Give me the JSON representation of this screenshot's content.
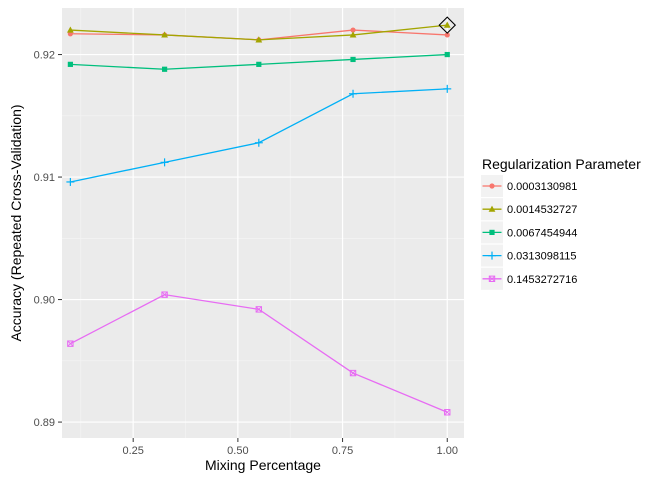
{
  "chart_data": {
    "type": "line",
    "xlabel": "Mixing Percentage",
    "ylabel": "Accuracy (Repeated Cross-Validation)",
    "xlim": [
      0.08,
      1.04
    ],
    "ylim": [
      0.8887,
      0.9238
    ],
    "x_ticks": [
      0.25,
      0.5,
      0.75,
      1.0
    ],
    "x_tick_labels": [
      "0.25",
      "0.50",
      "0.75",
      "1.00"
    ],
    "y_ticks": [
      0.89,
      0.9,
      0.91,
      0.92
    ],
    "y_tick_labels": [
      "0.89",
      "0.90",
      "0.91",
      "0.92"
    ],
    "grid": true,
    "legend": {
      "title": "Regularization Parameter",
      "position": "right"
    },
    "x": [
      0.1,
      0.325,
      0.55,
      0.775,
      1.0
    ],
    "series": [
      {
        "name": "0.0003130981",
        "color": "#F8766D",
        "shape": "circle",
        "values": [
          0.9217,
          0.9216,
          0.9212,
          0.922,
          0.9216
        ]
      },
      {
        "name": "0.0014532727",
        "color": "#A3A500",
        "shape": "triangle",
        "values": [
          0.922,
          0.9216,
          0.9212,
          0.9216,
          0.9224
        ]
      },
      {
        "name": "0.0067454944",
        "color": "#00BF7D",
        "shape": "square",
        "values": [
          0.9192,
          0.9188,
          0.9192,
          0.9196,
          0.92
        ]
      },
      {
        "name": "0.0313098115",
        "color": "#00B0F6",
        "shape": "plus",
        "values": [
          0.9096,
          0.9112,
          0.9128,
          0.9168,
          0.9172
        ]
      },
      {
        "name": "0.1453272716",
        "color": "#E76BF3",
        "shape": "boxcross",
        "values": [
          0.8964,
          0.9004,
          0.8992,
          0.894,
          0.8908
        ]
      }
    ],
    "highlight": {
      "x": 1.0,
      "y": 0.9224,
      "shape": "diamond"
    }
  }
}
